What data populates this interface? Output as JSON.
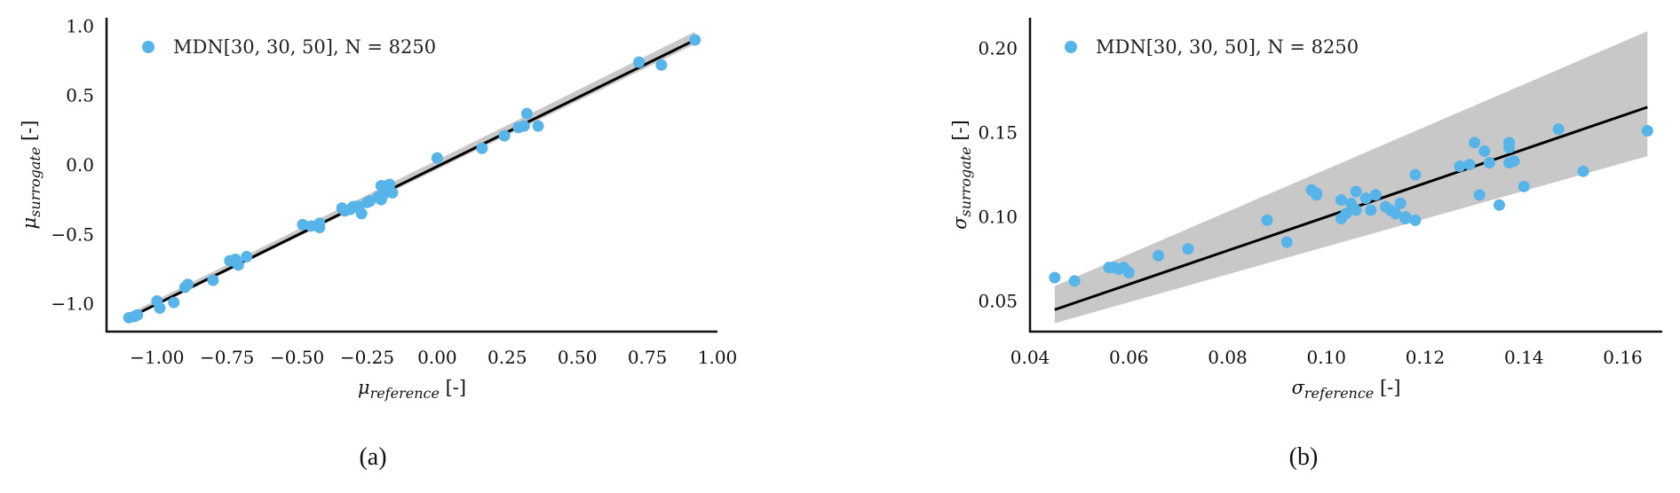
{
  "chart_data": [
    {
      "type": "scatter",
      "panel_caption": "(a)",
      "xlabel_symbol": "μ",
      "xlabel_sub": "reference",
      "xlabel_unit": " [-]",
      "ylabel_symbol": "μ",
      "ylabel_sub": "surrogate",
      "ylabel_unit": " [-]",
      "xlim": [
        -1.18,
        1.0
      ],
      "ylim": [
        -1.2,
        1.06
      ],
      "xticks": [
        -1.0,
        -0.75,
        -0.5,
        -0.25,
        0.0,
        0.25,
        0.5,
        0.75,
        1.0
      ],
      "xtick_labels": [
        "−1.00",
        "−0.75",
        "−0.50",
        "−0.25",
        "0.00",
        "0.25",
        "0.50",
        "0.75",
        "1.00"
      ],
      "yticks": [
        -1.0,
        -0.5,
        0.0,
        0.5,
        1.0
      ],
      "ytick_labels": [
        "−1.0",
        "−0.5",
        "0.0",
        "0.5",
        "1.0"
      ],
      "grid": false,
      "legend_position": "top-left",
      "series": [
        {
          "name": "MDN[30, 30, 50], N = 8250",
          "color": "#56b4e9",
          "x": [
            -1.1,
            -1.08,
            -1.07,
            -1.0,
            -0.99,
            -0.94,
            -0.9,
            -0.89,
            -0.8,
            -0.74,
            -0.73,
            -0.72,
            -0.71,
            -0.68,
            -0.48,
            -0.45,
            -0.42,
            -0.42,
            -0.34,
            -0.33,
            -0.31,
            -0.3,
            -0.29,
            -0.28,
            -0.27,
            -0.25,
            -0.24,
            -0.21,
            -0.2,
            -0.2,
            -0.19,
            -0.18,
            -0.17,
            -0.16,
            0.0,
            0.16,
            0.24,
            0.29,
            0.31,
            0.32,
            0.36,
            0.72,
            0.8,
            0.92
          ],
          "y": [
            -1.1,
            -1.09,
            -1.08,
            -0.98,
            -1.03,
            -0.99,
            -0.88,
            -0.86,
            -0.83,
            -0.69,
            -0.69,
            -0.68,
            -0.72,
            -0.66,
            -0.43,
            -0.44,
            -0.42,
            -0.45,
            -0.31,
            -0.33,
            -0.32,
            -0.3,
            -0.3,
            -0.3,
            -0.35,
            -0.27,
            -0.26,
            -0.23,
            -0.15,
            -0.25,
            -0.21,
            -0.15,
            -0.14,
            -0.2,
            0.05,
            0.12,
            0.21,
            0.27,
            0.28,
            0.37,
            0.28,
            0.74,
            0.72,
            0.9
          ]
        }
      ],
      "fit_line": {
        "x": [
          -1.1,
          0.92
        ],
        "y": [
          -1.1,
          0.9
        ],
        "color": "#000000"
      },
      "band": {
        "x": [
          -1.1,
          0.92
        ],
        "lower": [
          -1.11,
          0.87
        ],
        "upper": [
          -1.07,
          0.96
        ],
        "color": "#c8c8c8"
      }
    },
    {
      "type": "scatter",
      "panel_caption": "(b)",
      "xlabel_symbol": "σ",
      "xlabel_sub": "reference",
      "xlabel_unit": " [-]",
      "ylabel_symbol": "σ",
      "ylabel_sub": "surrogate",
      "ylabel_unit": " [-]",
      "xlim": [
        0.04,
        0.168
      ],
      "ylim": [
        0.032,
        0.218
      ],
      "xticks": [
        0.04,
        0.06,
        0.08,
        0.1,
        0.12,
        0.14,
        0.16
      ],
      "xtick_labels": [
        "0.04",
        "0.06",
        "0.08",
        "0.10",
        "0.12",
        "0.14",
        "0.16"
      ],
      "yticks": [
        0.05,
        0.1,
        0.15,
        0.2
      ],
      "ytick_labels": [
        "0.05",
        "0.10",
        "0.15",
        "0.20"
      ],
      "grid": false,
      "legend_position": "top-left",
      "series": [
        {
          "name": "MDN[30, 30, 50], N = 8250",
          "color": "#56b4e9",
          "x": [
            0.045,
            0.049,
            0.056,
            0.057,
            0.058,
            0.059,
            0.06,
            0.066,
            0.072,
            0.088,
            0.092,
            0.097,
            0.098,
            0.098,
            0.103,
            0.103,
            0.104,
            0.105,
            0.106,
            0.106,
            0.108,
            0.109,
            0.11,
            0.112,
            0.113,
            0.114,
            0.115,
            0.116,
            0.116,
            0.118,
            0.118,
            0.127,
            0.129,
            0.13,
            0.131,
            0.132,
            0.133,
            0.135,
            0.137,
            0.137,
            0.137,
            0.138,
            0.14,
            0.147,
            0.152,
            0.165
          ],
          "y": [
            0.064,
            0.062,
            0.07,
            0.07,
            0.069,
            0.07,
            0.067,
            0.077,
            0.081,
            0.098,
            0.085,
            0.116,
            0.114,
            0.113,
            0.099,
            0.11,
            0.102,
            0.108,
            0.115,
            0.104,
            0.111,
            0.104,
            0.113,
            0.106,
            0.104,
            0.102,
            0.108,
            0.1,
            0.099,
            0.125,
            0.098,
            0.13,
            0.131,
            0.144,
            0.113,
            0.139,
            0.132,
            0.107,
            0.132,
            0.144,
            0.141,
            0.133,
            0.118,
            0.152,
            0.127,
            0.151
          ]
        }
      ],
      "fit_line": {
        "x": [
          0.045,
          0.165
        ],
        "y": [
          0.045,
          0.165
        ],
        "color": "#000000"
      },
      "band": {
        "x": [
          0.045,
          0.165
        ],
        "lower": [
          0.037,
          0.136
        ],
        "upper": [
          0.059,
          0.21
        ],
        "color": "#c8c8c8"
      }
    }
  ]
}
